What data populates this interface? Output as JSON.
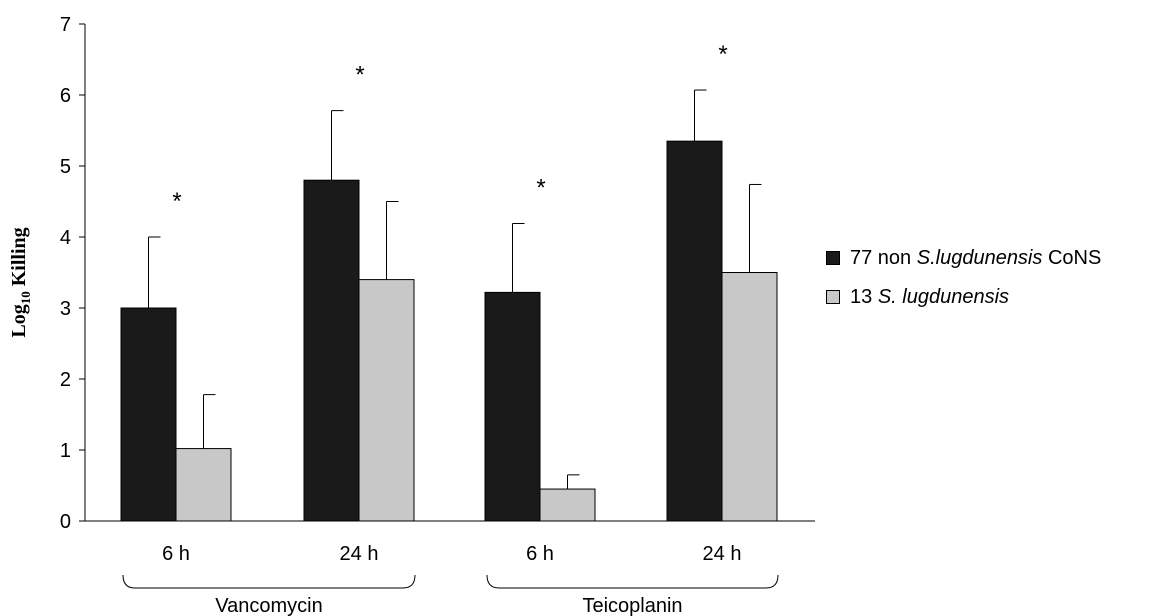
{
  "chart_data": {
    "type": "bar",
    "ylabel_main": "Log",
    "ylabel_sub": "10",
    "ylabel_rest": " Killing",
    "ylim": [
      0,
      7
    ],
    "yticks": [
      "0",
      "1",
      "2",
      "3",
      "4",
      "5",
      "6",
      "7"
    ],
    "categories": [
      "6 h",
      "24 h",
      "6 h",
      "24 h"
    ],
    "groups": [
      {
        "label": "Vancomycin",
        "categories": [
          0,
          1
        ]
      },
      {
        "label": "Teicoplanin",
        "categories": [
          2,
          3
        ]
      }
    ],
    "series": [
      {
        "name": "77 non S.lugdunensis CoNS",
        "values": [
          3.0,
          4.8,
          3.22,
          5.35
        ],
        "errors": [
          1.0,
          0.98,
          0.97,
          0.72
        ],
        "color": "#1a1a1a"
      },
      {
        "name": "13 S. lugdunensis",
        "values": [
          1.02,
          3.4,
          0.45,
          3.5
        ],
        "errors": [
          0.76,
          1.1,
          0.2,
          1.24
        ],
        "color": "#c8c8c8"
      }
    ],
    "significance": [
      "*",
      "*",
      "*",
      "*"
    ],
    "legend_position": "right"
  },
  "legend": {
    "item1_pre": "77 non ",
    "item1_italic": "S.lugdunensis",
    "item1_post": " CoNS",
    "item2_pre": "13 ",
    "item2_italic": "S. lugdunensis"
  }
}
